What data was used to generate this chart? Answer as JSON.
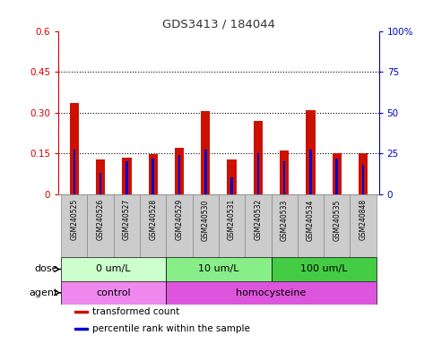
{
  "title": "GDS3413 / 184044",
  "samples": [
    "GSM240525",
    "GSM240526",
    "GSM240527",
    "GSM240528",
    "GSM240529",
    "GSM240530",
    "GSM240531",
    "GSM240532",
    "GSM240533",
    "GSM240534",
    "GSM240535",
    "GSM240848"
  ],
  "transformed_count": [
    0.335,
    0.128,
    0.135,
    0.148,
    0.17,
    0.305,
    0.128,
    0.27,
    0.16,
    0.31,
    0.15,
    0.15
  ],
  "percentile_rank_pct": [
    27,
    13,
    20,
    22,
    24,
    27,
    10,
    25,
    20,
    27,
    22,
    18
  ],
  "bar_width": 0.35,
  "blue_bar_width": 0.35,
  "ylim_left": [
    0,
    0.6
  ],
  "ylim_right": [
    0,
    100
  ],
  "yticks_left": [
    0,
    0.15,
    0.3,
    0.45,
    0.6
  ],
  "yticks_right": [
    0,
    25,
    50,
    75,
    100
  ],
  "ytick_labels_left": [
    "0",
    "0.15",
    "0.30",
    "0.45",
    "0.6"
  ],
  "ytick_labels_right": [
    "0",
    "25",
    "50",
    "75",
    "100%"
  ],
  "hlines": [
    0.15,
    0.3,
    0.45
  ],
  "dose_groups": [
    {
      "label": "0 um/L",
      "start": 0,
      "end": 4,
      "color": "#ccffcc"
    },
    {
      "label": "10 um/L",
      "start": 4,
      "end": 8,
      "color": "#88ee88"
    },
    {
      "label": "100 um/L",
      "start": 8,
      "end": 12,
      "color": "#44cc44"
    }
  ],
  "agent_groups": [
    {
      "label": "control",
      "start": 0,
      "end": 4,
      "color": "#ee88ee"
    },
    {
      "label": "homocysteine",
      "start": 4,
      "end": 12,
      "color": "#dd55dd"
    }
  ],
  "dose_label": "dose",
  "agent_label": "agent",
  "bar_color_red": "#cc1100",
  "bar_color_blue": "#0000cc",
  "tick_color_left": "#cc0000",
  "tick_color_right": "#0000cc",
  "legend_items": [
    {
      "label": "transformed count",
      "color": "#cc1100"
    },
    {
      "label": "percentile rank within the sample",
      "color": "#0000cc"
    }
  ],
  "bg_color": "#ffffff",
  "xtick_bg_color": "#cccccc",
  "grid_color": "#000000"
}
